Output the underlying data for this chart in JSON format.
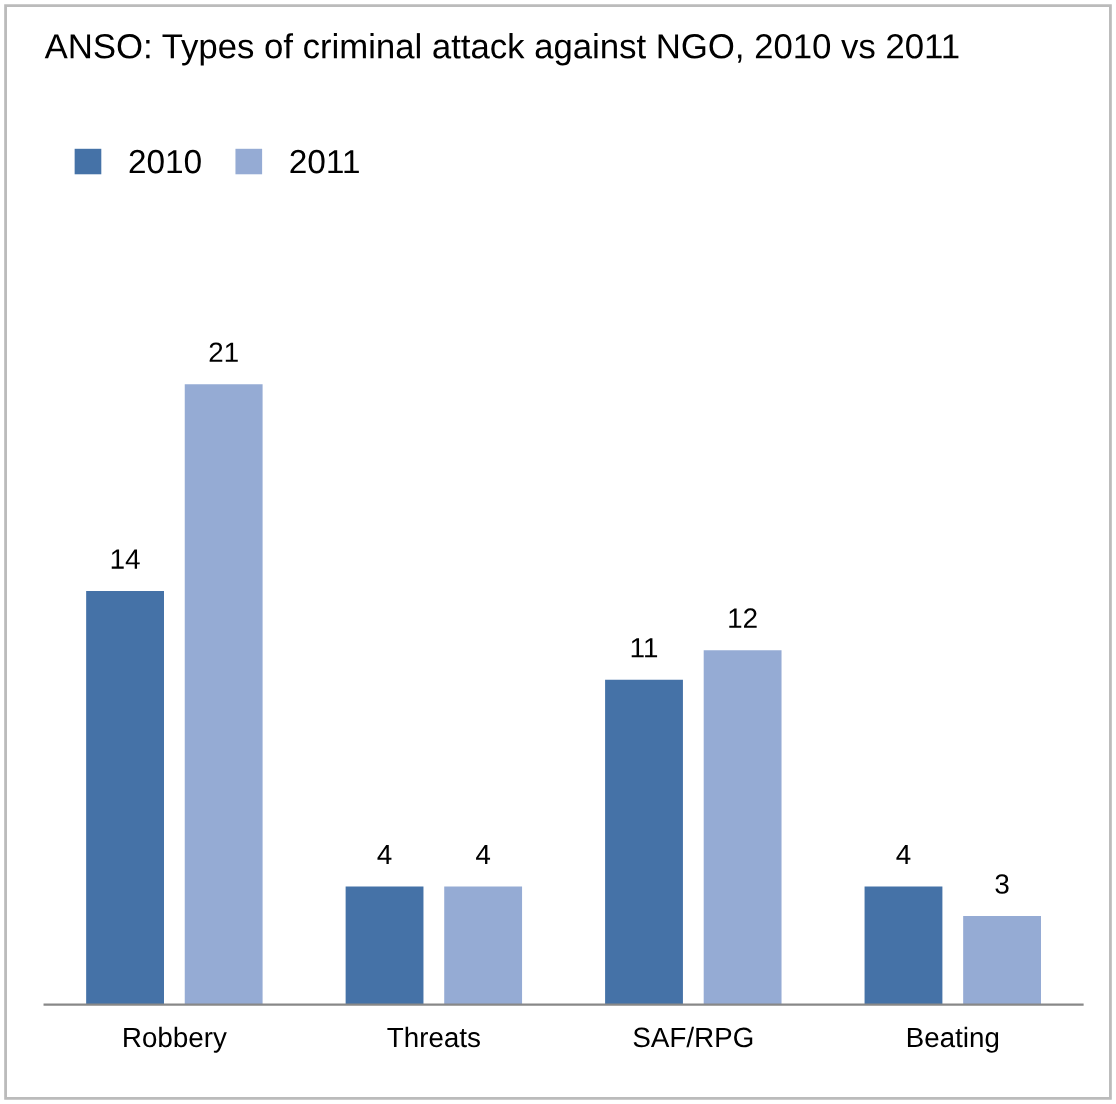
{
  "chart_data": {
    "type": "bar",
    "title": "ANSO: Types of criminal attack against NGO, 2010 vs 2011",
    "categories": [
      "Robbery",
      "Threats",
      "SAF/RPG",
      "Beating"
    ],
    "series": [
      {
        "name": "2010",
        "color": "#4572a7",
        "values": [
          14,
          4,
          11,
          4
        ]
      },
      {
        "name": "2011",
        "color": "#95abd4",
        "values": [
          21,
          4,
          12,
          3
        ]
      }
    ],
    "data_labels": true,
    "legend": "top left",
    "grid": false
  }
}
